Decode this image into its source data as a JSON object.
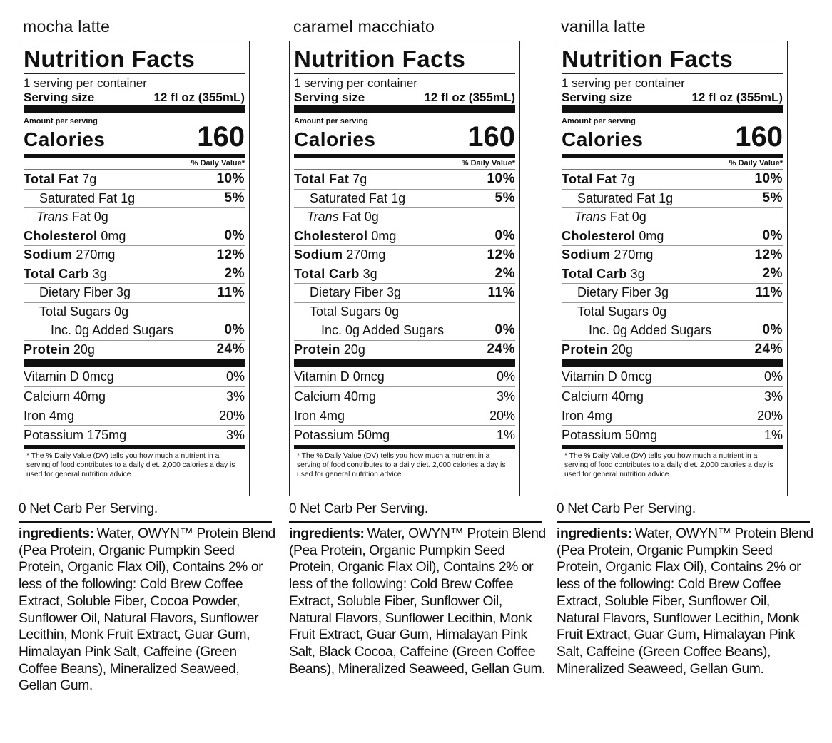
{
  "panels": [
    {
      "flavor": "mocha latte",
      "title": "Nutrition Facts",
      "servings": "1 serving per container",
      "serving_size_label": "Serving size",
      "serving_size": "12 fl oz (355mL)",
      "amount_per_serving": "Amount per serving",
      "calories_label": "Calories",
      "calories": 160,
      "dv_header": "% Daily Value*",
      "rows": [
        {
          "name": "Total Fat",
          "amount": "7g",
          "dv": "10%"
        },
        {
          "name": "Saturated Fat",
          "amount": "1g",
          "dv": "5%"
        },
        {
          "name_italic": "Trans",
          "name": "Fat",
          "amount": "0g"
        },
        {
          "name": "Cholesterol",
          "amount": "0mg",
          "dv": "0%"
        },
        {
          "name": "Sodium",
          "amount": "270mg",
          "dv": "12%"
        },
        {
          "name": "Total Carb",
          "amount": "3g",
          "dv": "2%"
        },
        {
          "name": "Dietary Fiber",
          "amount": "3g",
          "dv": "11%"
        },
        {
          "name": "Total Sugars",
          "amount": "0g"
        },
        {
          "name": "Inc. 0g Added Sugars",
          "dv": "0%"
        },
        {
          "name": "Protein",
          "amount": "20g",
          "dv": "24%"
        }
      ],
      "vitamins": [
        {
          "name": "Vitamin D",
          "amount": "0mcg",
          "dv": "0%"
        },
        {
          "name": "Calcium",
          "amount": "40mg",
          "dv": "3%"
        },
        {
          "name": "Iron",
          "amount": "4mg",
          "dv": "20%"
        },
        {
          "name": "Potassium",
          "amount": "175mg",
          "dv": "3%"
        }
      ],
      "footnote": "* The % Daily Value (DV) tells you how much a nutrient in a serving of food contributes to a daily diet. 2,000 calories a day is used for general nutrition advice.",
      "net_carb": "0 Net Carb Per Serving.",
      "ingredients_label": "ingredients:",
      "ingredients": "Water, OWYN™ Protein Blend (Pea Protein, Organic Pumpkin Seed Protein, Organic Flax Oil), Contains 2% or less of the following: Cold Brew Coffee Extract, Soluble Fiber, Cocoa Powder, Sunflower Oil, Natural Flavors, Sunflower Lecithin, Monk Fruit Extract, Guar Gum, Himalayan Pink Salt, Caffeine (Green Coffee Beans), Mineralized Seaweed, Gellan Gum."
    },
    {
      "flavor": "caramel macchiato",
      "title": "Nutrition Facts",
      "servings": "1 serving per container",
      "serving_size_label": "Serving size",
      "serving_size": "12 fl oz (355mL)",
      "amount_per_serving": "Amount per serving",
      "calories_label": "Calories",
      "calories": 160,
      "dv_header": "% Daily Value*",
      "rows": [
        {
          "name": "Total Fat",
          "amount": "7g",
          "dv": "10%"
        },
        {
          "name": "Saturated Fat",
          "amount": "1g",
          "dv": "5%"
        },
        {
          "name_italic": "Trans",
          "name": "Fat",
          "amount": "0g"
        },
        {
          "name": "Cholesterol",
          "amount": "0mg",
          "dv": "0%"
        },
        {
          "name": "Sodium",
          "amount": "270mg",
          "dv": "12%"
        },
        {
          "name": "Total Carb",
          "amount": "3g",
          "dv": "2%"
        },
        {
          "name": "Dietary Fiber",
          "amount": "3g",
          "dv": "11%"
        },
        {
          "name": "Total Sugars",
          "amount": "0g"
        },
        {
          "name": "Inc. 0g Added Sugars",
          "dv": "0%"
        },
        {
          "name": "Protein",
          "amount": "20g",
          "dv": "24%"
        }
      ],
      "vitamins": [
        {
          "name": "Vitamin D",
          "amount": "0mcg",
          "dv": "0%"
        },
        {
          "name": "Calcium",
          "amount": "40mg",
          "dv": "3%"
        },
        {
          "name": "Iron",
          "amount": "4mg",
          "dv": "20%"
        },
        {
          "name": "Potassium",
          "amount": "50mg",
          "dv": "1%"
        }
      ],
      "footnote": "* The % Daily Value (DV) tells you how much a nutrient in a serving of food contributes to a daily diet. 2,000 calories a day is used for general nutrition advice.",
      "net_carb": "0 Net Carb Per Serving.",
      "ingredients_label": "ingredients:",
      "ingredients": "Water, OWYN™ Protein Blend (Pea Protein, Organic Pumpkin Seed Protein, Organic Flax Oil), Contains 2% or less of the following: Cold Brew Coffee Extract, Soluble Fiber, Sunflower Oil, Natural Flavors, Sunflower Lecithin, Monk Fruit Extract, Guar Gum, Himalayan Pink Salt, Black Cocoa, Caffeine (Green Coffee Beans), Mineralized Seaweed, Gellan Gum."
    },
    {
      "flavor": "vanilla latte",
      "title": "Nutrition Facts",
      "servings": "1 serving per container",
      "serving_size_label": "Serving size",
      "serving_size": "12 fl oz (355mL)",
      "amount_per_serving": "Amount per serving",
      "calories_label": "Calories",
      "calories": 160,
      "dv_header": "% Daily Value*",
      "rows": [
        {
          "name": "Total Fat",
          "amount": "7g",
          "dv": "10%"
        },
        {
          "name": "Saturated Fat",
          "amount": "1g",
          "dv": "5%"
        },
        {
          "name_italic": "Trans",
          "name": "Fat",
          "amount": "0g"
        },
        {
          "name": "Cholesterol",
          "amount": "0mg",
          "dv": "0%"
        },
        {
          "name": "Sodium",
          "amount": "270mg",
          "dv": "12%"
        },
        {
          "name": "Total Carb",
          "amount": "3g",
          "dv": "2%"
        },
        {
          "name": "Dietary Fiber",
          "amount": "3g",
          "dv": "11%"
        },
        {
          "name": "Total Sugars",
          "amount": "0g"
        },
        {
          "name": "Inc. 0g Added Sugars",
          "dv": "0%"
        },
        {
          "name": "Protein",
          "amount": "20g",
          "dv": "24%"
        }
      ],
      "vitamins": [
        {
          "name": "Vitamin D",
          "amount": "0mcg",
          "dv": "0%"
        },
        {
          "name": "Calcium",
          "amount": "40mg",
          "dv": "3%"
        },
        {
          "name": "Iron",
          "amount": "4mg",
          "dv": "20%"
        },
        {
          "name": "Potassium",
          "amount": "50mg",
          "dv": "1%"
        }
      ],
      "footnote": "* The % Daily Value (DV) tells you how much a nutrient in a serving of food contributes to a daily diet. 2,000 calories a day is used for general nutrition advice.",
      "net_carb": "0 Net Carb Per Serving.",
      "ingredients_label": "ingredients:",
      "ingredients": "Water, OWYN™ Protein Blend (Pea Protein, Organic Pumpkin Seed Protein, Organic Flax Oil), Contains 2% or less of the following: Cold Brew Coffee Extract, Soluble Fiber, Sunflower Oil, Natural Flavors, Sunflower Lecithin, Monk Fruit Extract, Guar Gum, Himalayan Pink Salt, Caffeine (Green Coffee Beans), Mineralized Seaweed, Gellan Gum."
    }
  ]
}
